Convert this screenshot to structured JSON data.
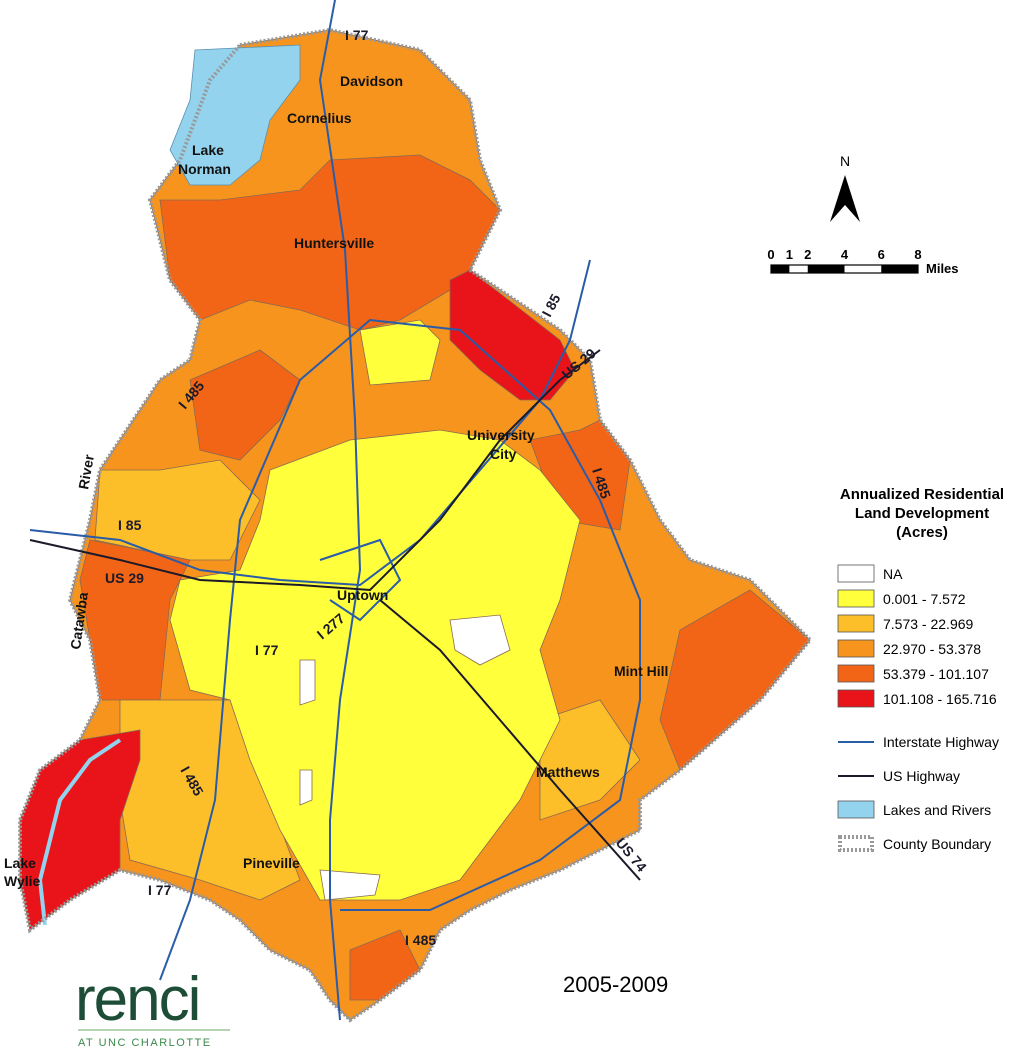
{
  "map": {
    "period": "2005-2009",
    "places": [
      "I 77",
      "Davidson",
      "Cornelius",
      "Lake",
      "Norman",
      "Huntersville",
      "I 85",
      "US 29",
      "I 485",
      "University",
      "City",
      "River",
      "I 485",
      "I 85",
      "US 29",
      "Catawba",
      "Uptown",
      "I 277",
      "I 77",
      "Mint Hill",
      "Matthews",
      "US 74",
      "I 485",
      "Pineville",
      "I 77",
      "I 485",
      "Lake",
      "Wylie"
    ],
    "north": "N",
    "scale_ticks": [
      0,
      1,
      2,
      4,
      6,
      8
    ],
    "scale_unit": "Miles",
    "legend": {
      "title": [
        "Annualized Residential",
        "Land Development",
        "(Acres)"
      ],
      "classes": [
        {
          "label": "NA",
          "color": "#ffffff"
        },
        {
          "label": "0.001 - 7.572",
          "color": "#ffff3c"
        },
        {
          "label": "7.573 - 22.969",
          "color": "#fcbf2a"
        },
        {
          "label": "22.970 - 53.378",
          "color": "#f7941d"
        },
        {
          "label": "53.379 - 101.107",
          "color": "#f26516"
        },
        {
          "label": "101.108 - 165.716",
          "color": "#e8141a"
        }
      ],
      "features": [
        {
          "label": "Interstate Highway",
          "color": "#2a5ca8"
        },
        {
          "label": "US Highway",
          "color": "#1a1a2a"
        },
        {
          "label": "Lakes and Rivers",
          "color": "#93d3ee"
        },
        {
          "label": "County Boundary",
          "color": "#999999"
        }
      ]
    },
    "logo": {
      "name": "renci",
      "subtitle": "AT UNC CHARLOTTE"
    }
  }
}
